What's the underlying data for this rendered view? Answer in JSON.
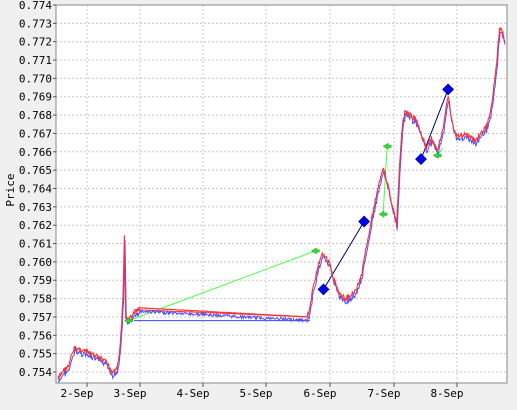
{
  "chart_data": {
    "type": "line",
    "ylabel": "Price",
    "xlabel": "",
    "title": "",
    "ylim": [
      0.7534,
      0.774
    ],
    "x_range": [
      "2-Sep 00:00",
      "8-Sep 21:00"
    ],
    "x_ticks": [
      "2-Sep",
      "3-Sep",
      "4-Sep",
      "5-Sep",
      "6-Sep",
      "7-Sep",
      "8-Sep"
    ],
    "y_ticks": [
      "0.754",
      "0.755",
      "0.756",
      "0.757",
      "0.758",
      "0.759",
      "0.760",
      "0.761",
      "0.762",
      "0.763",
      "0.764",
      "0.765",
      "0.766",
      "0.767",
      "0.768",
      "0.769",
      "0.770",
      "0.771",
      "0.772",
      "0.773",
      "0.774"
    ],
    "grid": true,
    "series": [
      {
        "color": "#ff3030",
        "shadow_color": "#5050ff",
        "points": [
          [
            "2-Sep 00:00",
            0.7536
          ],
          [
            "2-Sep 02:00",
            0.7541
          ],
          [
            "2-Sep 04:00",
            0.7543
          ],
          [
            "2-Sep 05:00",
            0.7549
          ],
          [
            "2-Sep 06:00",
            0.7553
          ],
          [
            "2-Sep 09:00",
            0.7552
          ],
          [
            "2-Sep 12:00",
            0.755
          ],
          [
            "2-Sep 15:00",
            0.7548
          ],
          [
            "2-Sep 18:00",
            0.7545
          ],
          [
            "2-Sep 20:00",
            0.754
          ],
          [
            "2-Sep 22:00",
            0.7543
          ],
          [
            "2-Sep 23:00",
            0.7555
          ],
          [
            "3-Sep 00:00",
            0.758
          ],
          [
            "3-Sep 00:30",
            0.7614
          ],
          [
            "3-Sep 01:00",
            0.757
          ],
          [
            "3-Sep 02:00",
            0.7568
          ],
          [
            "3-Sep 03:00",
            0.757
          ],
          [
            "3-Sep 04:00",
            0.7572
          ],
          [
            "3-Sep 06:00",
            0.7575
          ],
          [
            "5-Sep 20:00",
            0.757
          ],
          [
            "5-Sep 21:00",
            0.7575
          ],
          [
            "5-Sep 22:00",
            0.7585
          ],
          [
            "6-Sep 00:00",
            0.7598
          ],
          [
            "6-Sep 02:00",
            0.7605
          ],
          [
            "6-Sep 04:00",
            0.76
          ],
          [
            "6-Sep 06:00",
            0.759
          ],
          [
            "6-Sep 08:00",
            0.7582
          ],
          [
            "6-Sep 10:00",
            0.758
          ],
          [
            "6-Sep 12:00",
            0.7582
          ],
          [
            "6-Sep 14:00",
            0.7585
          ],
          [
            "6-Sep 16:00",
            0.7592
          ],
          [
            "6-Sep 18:00",
            0.761
          ],
          [
            "6-Sep 20:00",
            0.7625
          ],
          [
            "6-Sep 22:00",
            0.764
          ],
          [
            "7-Sep 00:00",
            0.7652
          ],
          [
            "7-Sep 02:00",
            0.764
          ],
          [
            "7-Sep 04:00",
            0.7627
          ],
          [
            "7-Sep 05:00",
            0.762
          ],
          [
            "7-Sep 06:00",
            0.765
          ],
          [
            "7-Sep 07:00",
            0.7672
          ],
          [
            "7-Sep 08:00",
            0.7682
          ],
          [
            "7-Sep 10:00",
            0.768
          ],
          [
            "7-Sep 12:00",
            0.7678
          ],
          [
            "7-Sep 14:00",
            0.767
          ],
          [
            "7-Sep 16:00",
            0.7662
          ],
          [
            "7-Sep 18:00",
            0.7668
          ],
          [
            "7-Sep 20:00",
            0.766
          ],
          [
            "7-Sep 22:00",
            0.7672
          ],
          [
            "8-Sep 00:00",
            0.769
          ],
          [
            "8-Sep 02:00",
            0.7672
          ],
          [
            "8-Sep 04:00",
            0.7668
          ],
          [
            "8-Sep 06:00",
            0.767
          ],
          [
            "8-Sep 08:00",
            0.7668
          ],
          [
            "8-Sep 10:00",
            0.7666
          ],
          [
            "8-Sep 12:00",
            0.767
          ],
          [
            "8-Sep 14:00",
            0.7673
          ],
          [
            "8-Sep 16:00",
            0.7685
          ],
          [
            "8-Sep 18:00",
            0.771
          ],
          [
            "8-Sep 19:00",
            0.7728
          ],
          [
            "8-Sep 20:00",
            0.7725
          ],
          [
            "8-Sep 21:00",
            0.772
          ]
        ]
      }
    ],
    "trade_lines": [
      {
        "color": "#44ff44",
        "from": [
          "3-Sep 02:00",
          0.7568
        ],
        "to": [
          "5-Sep 23:00",
          0.7606
        ]
      },
      {
        "color": "#ff3030",
        "from": [
          "3-Sep 04:00",
          0.7574
        ],
        "to": [
          "5-Sep 21:00",
          0.757
        ]
      },
      {
        "color": "#4040ff",
        "from": [
          "3-Sep 04:00",
          0.7568
        ],
        "to": [
          "5-Sep 21:00",
          0.7568
        ]
      },
      {
        "color": "#000080",
        "from": [
          "6-Sep 02:00",
          0.7585
        ],
        "to": [
          "6-Sep 17:00",
          0.7622
        ]
      },
      {
        "color": "#44ff44",
        "from": [
          "7-Sep 00:00",
          0.7626
        ],
        "to": [
          "7-Sep 01:30",
          0.7663
        ]
      },
      {
        "color": "#000080",
        "from": [
          "7-Sep 14:00",
          0.7656
        ],
        "to": [
          "8-Sep 00:00",
          0.7694
        ]
      },
      {
        "color": "#44ff44",
        "from": [
          "7-Sep 20:00",
          0.7658
        ],
        "to": [
          "7-Sep 22:00",
          0.7662
        ]
      }
    ],
    "markers": [
      {
        "shape": "diamond",
        "color": "#0000ee",
        "x": "6-Sep 02:00",
        "y": 0.7585
      },
      {
        "shape": "diamond",
        "color": "#0000ee",
        "x": "6-Sep 17:00",
        "y": 0.7622
      },
      {
        "shape": "diamond",
        "color": "#0000ee",
        "x": "7-Sep 14:00",
        "y": 0.7656
      },
      {
        "shape": "diamond",
        "color": "#0000ee",
        "x": "8-Sep 00:00",
        "y": 0.7694
      },
      {
        "shape": "arrow",
        "color": "#33dd33",
        "x": "3-Sep 02:00",
        "y": 0.7568
      },
      {
        "shape": "arrow",
        "color": "#33dd33",
        "x": "5-Sep 23:00",
        "y": 0.7606
      },
      {
        "shape": "arrow",
        "color": "#33dd33",
        "x": "7-Sep 00:00",
        "y": 0.7626
      },
      {
        "shape": "arrow",
        "color": "#33dd33",
        "x": "7-Sep 01:30",
        "y": 0.7663
      },
      {
        "shape": "arrow",
        "color": "#33dd33",
        "x": "7-Sep 20:00",
        "y": 0.7658
      }
    ]
  }
}
